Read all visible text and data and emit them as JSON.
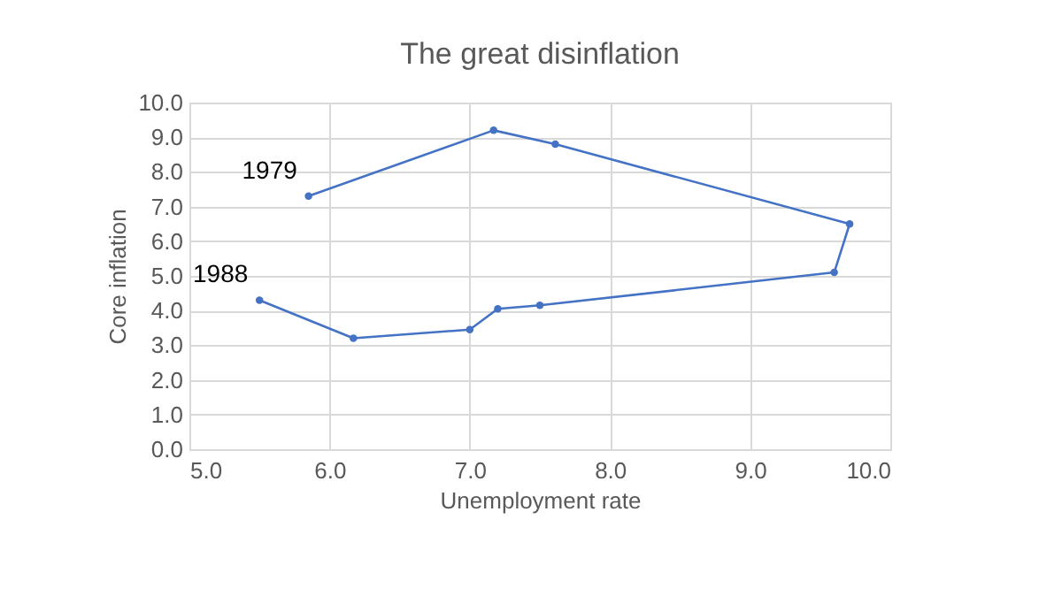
{
  "chart_data": {
    "type": "line",
    "title": "The great disinflation",
    "xlabel": "Unemployment rate",
    "ylabel": "Core inflation",
    "series": [
      {
        "color": "#4472c4",
        "x": [
          5.85,
          7.17,
          7.61,
          9.71,
          9.6,
          7.5,
          7.2,
          7.0,
          6.17,
          5.5
        ],
        "values": [
          7.3,
          9.2,
          8.8,
          6.5,
          5.1,
          4.15,
          4.05,
          3.45,
          3.2,
          4.3
        ]
      }
    ],
    "xlim": [
      5.0,
      10.0
    ],
    "xticks": [
      {
        "value": 5,
        "label": "5.0"
      },
      {
        "value": 6,
        "label": "6.0"
      },
      {
        "value": 7,
        "label": "7.0"
      },
      {
        "value": 8,
        "label": "8.0"
      },
      {
        "value": 9,
        "label": "9.0"
      },
      {
        "value": 10,
        "label": "10.0"
      }
    ],
    "ylim": [
      0,
      10
    ],
    "yticks": [
      {
        "value": 0,
        "label": "0.0"
      },
      {
        "value": 1,
        "label": "1.0"
      },
      {
        "value": 2,
        "label": "2.0"
      },
      {
        "value": 3,
        "label": "3.0"
      },
      {
        "value": 4,
        "label": "4.0"
      },
      {
        "value": 5,
        "label": "5.0"
      },
      {
        "value": 6,
        "label": "6.0"
      },
      {
        "value": 7,
        "label": "7.0"
      },
      {
        "value": 8,
        "label": "8.0"
      },
      {
        "value": 9,
        "label": "9.0"
      },
      {
        "value": 10,
        "label": "10.0"
      }
    ],
    "annotations": [
      {
        "text": "1979",
        "x": 5.85,
        "y": 7.3
      },
      {
        "text": "1988",
        "x": 5.5,
        "y": 4.3
      }
    ],
    "grid": true,
    "marker": "circle",
    "line_style": "solid"
  }
}
